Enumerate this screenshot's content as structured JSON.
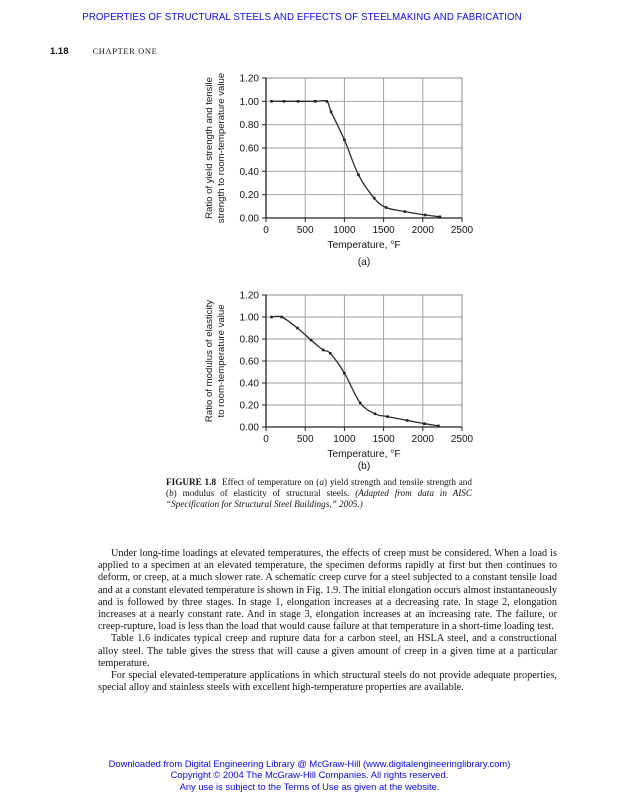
{
  "page": {
    "header": "PROPERTIES OF STRUCTURAL STEELS AND EFFECTS OF STEELMAKING AND FABRICATION",
    "page_number": "1.18",
    "chapter": "CHAPTER ONE"
  },
  "chart_data": [
    {
      "type": "line",
      "sublabel": "(a)",
      "xlabel": "Temperature, °F",
      "ylabel": "Ratio of yield strength and tensile strength to room-temperature value",
      "ylabel_lines": [
        "Ratio of yield strength and tensile",
        "strength to room-temperature value"
      ],
      "xlim": [
        0,
        2500
      ],
      "ylim": [
        0,
        1.2
      ],
      "xticks": [
        0,
        500,
        1000,
        1500,
        2000,
        2500
      ],
      "yticks": [
        0,
        0.2,
        0.4,
        0.6,
        0.8,
        1,
        1.2
      ],
      "grid": true,
      "legend": "none",
      "series": [
        {
          "name": "yield-and-tensile-strength-ratio",
          "points": [
            [
              70,
              1.0
            ],
            [
              230,
              1.0
            ],
            [
              410,
              1.0
            ],
            [
              630,
              1.0
            ],
            [
              775,
              1.0
            ],
            [
              830,
              0.91
            ],
            [
              1000,
              0.67
            ],
            [
              1180,
              0.37
            ],
            [
              1380,
              0.17
            ],
            [
              1530,
              0.09
            ],
            [
              1770,
              0.055
            ],
            [
              2030,
              0.026
            ],
            [
              2220,
              0.01
            ]
          ]
        }
      ]
    },
    {
      "type": "line",
      "sublabel": "(b)",
      "xlabel": "Temperature, °F",
      "ylabel": "Ratio of modulus of elasticity to room-temperature value",
      "ylabel_lines": [
        "Ratio of modulus of elasticity",
        "to room-temperature value"
      ],
      "xlim": [
        0,
        2500
      ],
      "ylim": [
        0,
        1.2
      ],
      "xticks": [
        0,
        500,
        1000,
        1500,
        2000,
        2500
      ],
      "yticks": [
        0,
        0.2,
        0.4,
        0.6,
        0.8,
        1,
        1.2
      ],
      "grid": true,
      "legend": "none",
      "series": [
        {
          "name": "modulus-of-elasticity-ratio",
          "points": [
            [
              70,
              1.0
            ],
            [
              200,
              1.0
            ],
            [
              400,
              0.9
            ],
            [
              575,
              0.79
            ],
            [
              730,
              0.7
            ],
            [
              820,
              0.67
            ],
            [
              1000,
              0.49
            ],
            [
              1200,
              0.22
            ],
            [
              1390,
              0.12
            ],
            [
              1550,
              0.095
            ],
            [
              1800,
              0.06
            ],
            [
              2020,
              0.03
            ],
            [
              2200,
              0.01
            ]
          ]
        }
      ]
    }
  ],
  "figure_caption": {
    "label": "FIGURE 1.8",
    "part1": "Effect of temperature on (",
    "italic_a": "a",
    "part2": ") yield strength and tensile strength and (",
    "italic_b": "b",
    "part3": ") modulus of elasticity of structural steels. ",
    "source_italic": "(Adapted from data in AISC “Specification for Structural Steel Buildings,” 2005.)"
  },
  "body": {
    "paragraphs": [
      "Under long-time loadings at elevated temperatures, the effects of creep must be considered. When a load is applied to a specimen at an elevated temperature, the specimen deforms rapidly at first but then continues to deform, or creep, at a much slower rate. A schematic creep curve for a steel subjected to a constant tensile load and at a constant elevated temperature is shown in Fig. 1.9. The initial elongation occurs almost instantaneously and is followed by three stages. In stage 1, elongation increases at a decreasing rate. In stage 2, elongation increases at a nearly constant rate. And in stage 3, elongation increases at an increasing rate. The failure, or creep-rupture, load is less than the load that would cause failure at that temperature in a short-time loading test.",
      "Table 1.6 indicates typical creep and rupture data for a carbon steel, an HSLA steel, and a constructional alloy steel. The table gives the stress that will cause a given amount of creep in a given time at a particular temperature.",
      "For special elevated-temperature applications in which structural steels do not provide adequate properties, special alloy and stainless steels with excellent high-temperature properties are available."
    ]
  },
  "footer": {
    "line1": "Downloaded from Digital Engineering Library @ McGraw-Hill (www.digitalengineeringlibrary.com)",
    "line2": "Copyright © 2004 The McGraw-Hill Companies. All rights reserved.",
    "line3": "Any use is subject to the Terms of Use as given at the website."
  },
  "colors": {
    "link_blue": "#0a0af0",
    "grid_gray": "#9a9a9a",
    "curve_dark": "#2b2b2b",
    "axis_dark": "#222222"
  }
}
